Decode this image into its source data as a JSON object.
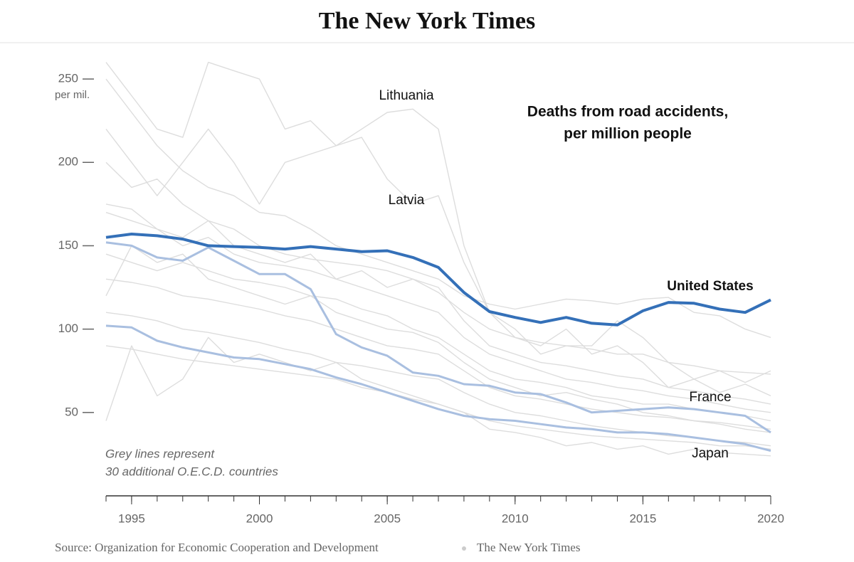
{
  "header": {
    "masthead": "The New York Times"
  },
  "chart_data": {
    "type": "line",
    "title": [
      "Deaths from road accidents,",
      "per million people"
    ],
    "y_unit": "per mil.",
    "annotation": [
      "Grey lines represent",
      "30 additional O.E.C.D. countries"
    ],
    "x": [
      1994,
      1995,
      1996,
      1997,
      1998,
      1999,
      2000,
      2001,
      2002,
      2003,
      2004,
      2005,
      2006,
      2007,
      2008,
      2009,
      2010,
      2011,
      2012,
      2013,
      2014,
      2015,
      2016,
      2017,
      2018,
      2019,
      2020
    ],
    "xlim": [
      1994,
      2020
    ],
    "xticks": [
      1995,
      2000,
      2005,
      2010,
      2015,
      2020
    ],
    "ylim": [
      0,
      272
    ],
    "yticks": [
      50,
      100,
      150,
      200,
      250
    ],
    "series": [
      {
        "color": "#dddddd",
        "values": [
          170,
          165,
          160,
          150,
          155,
          145,
          140,
          138,
          135,
          130,
          125,
          120,
          115,
          110,
          95,
          85,
          80,
          75,
          70,
          68,
          65,
          63,
          60,
          58,
          55,
          52,
          50
        ]
      },
      {
        "color": "#dddddd",
        "values": [
          130,
          128,
          125,
          120,
          118,
          115,
          112,
          108,
          105,
          100,
          95,
          90,
          88,
          85,
          75,
          65,
          60,
          58,
          55,
          52,
          50,
          48,
          47,
          45,
          44,
          42,
          40
        ]
      },
      {
        "color": "#dddddd",
        "values": [
          110,
          108,
          105,
          100,
          98,
          95,
          92,
          88,
          85,
          80,
          78,
          75,
          72,
          70,
          62,
          55,
          50,
          48,
          45,
          42,
          40,
          38,
          36,
          35,
          33,
          32,
          30
        ]
      },
      {
        "color": "#dddddd",
        "values": [
          200,
          185,
          190,
          175,
          165,
          160,
          150,
          145,
          142,
          140,
          138,
          135,
          130,
          125,
          105,
          90,
          85,
          80,
          78,
          75,
          72,
          70,
          65,
          63,
          60,
          58,
          55
        ]
      },
      {
        "color": "#dddddd",
        "values": [
          90,
          88,
          85,
          82,
          80,
          78,
          76,
          74,
          72,
          70,
          65,
          62,
          58,
          55,
          50,
          45,
          42,
          40,
          38,
          36,
          35,
          34,
          33,
          32,
          30,
          30,
          28
        ]
      },
      {
        "color": "#dddddd",
        "values": [
          145,
          140,
          135,
          140,
          135,
          130,
          128,
          125,
          120,
          118,
          112,
          108,
          100,
          95,
          85,
          75,
          70,
          68,
          65,
          60,
          58,
          55,
          55,
          52,
          50,
          48,
          45
        ]
      },
      {
        "color": "#dddddd",
        "values": [
          45,
          90,
          60,
          70,
          95,
          80,
          85,
          80,
          75,
          80,
          70,
          65,
          60,
          55,
          50,
          40,
          38,
          35,
          30,
          32,
          28,
          30,
          25,
          28,
          26,
          25,
          24
        ]
      },
      {
        "color": "#dddddd",
        "values": [
          175,
          172,
          160,
          155,
          165,
          150,
          145,
          140,
          145,
          130,
          135,
          125,
          130,
          122,
          110,
          100,
          95,
          92,
          90,
          88,
          85,
          85,
          80,
          78,
          75,
          74,
          73
        ]
      },
      {
        "color": "#dddddd",
        "values": [
          120,
          150,
          140,
          145,
          130,
          125,
          120,
          115,
          120,
          110,
          105,
          100,
          98,
          92,
          80,
          70,
          65,
          60,
          62,
          58,
          55,
          50,
          48,
          45,
          43,
          40,
          38
        ]
      },
      {
        "color": "#dddddd",
        "values": [
          250,
          230,
          210,
          195,
          185,
          180,
          170,
          168,
          160,
          150,
          145,
          140,
          135,
          130,
          120,
          115,
          112,
          115,
          118,
          117,
          115,
          118,
          119,
          110,
          108,
          100,
          95
        ]
      },
      {
        "name": "Lithuania",
        "color": "#dddddd",
        "values": [
          220,
          200,
          180,
          200,
          220,
          200,
          175,
          200,
          205,
          210,
          220,
          230,
          232,
          220,
          150,
          110,
          95,
          90,
          100,
          85,
          90,
          80,
          65,
          70,
          62,
          67,
          60
        ]
      },
      {
        "name": "Latvia",
        "color": "#dddddd",
        "values": [
          260,
          240,
          220,
          215,
          260,
          255,
          250,
          220,
          225,
          210,
          215,
          190,
          175,
          180,
          140,
          110,
          100,
          85,
          90,
          90,
          105,
          95,
          80,
          70,
          75,
          68,
          75
        ]
      },
      {
        "name": "France",
        "color": "#a9bfe0",
        "values": [
          152,
          150,
          143,
          141,
          149,
          141,
          133,
          133,
          124,
          97,
          89,
          84,
          74,
          72,
          67,
          66,
          62,
          61,
          56,
          50,
          51,
          52,
          53,
          52,
          50,
          48,
          38
        ]
      },
      {
        "name": "Japan",
        "color": "#a9bfe0",
        "values": [
          102,
          101,
          93,
          89,
          86,
          83,
          82,
          79,
          76,
          71,
          67,
          62,
          57,
          52,
          48,
          46,
          45,
          43,
          41,
          40,
          38,
          38,
          37,
          35,
          33,
          31,
          27
        ]
      },
      {
        "name": "United States",
        "color": "#3470b8",
        "values": [
          155,
          157,
          156,
          154,
          150,
          149.5,
          149,
          148,
          149.5,
          148,
          146.5,
          147,
          143,
          137,
          122,
          110.5,
          107,
          104,
          107,
          103.5,
          102.5,
          111,
          116,
          115.5,
          112,
          110,
          117.5
        ]
      }
    ]
  },
  "footer": {
    "source": "Source: Organization for Economic Cooperation and Development",
    "credit": "The New York Times"
  }
}
